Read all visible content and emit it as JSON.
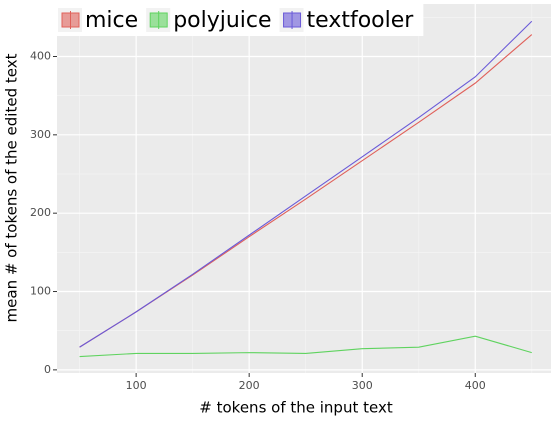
{
  "chart_data": {
    "type": "line",
    "x_label": "# tokens of the input text",
    "y_label": "mean # of tokens of the edited text",
    "x": [
      50,
      100,
      150,
      200,
      250,
      300,
      350,
      400,
      450
    ],
    "series": [
      {
        "name": "mice",
        "color": "#e0605a",
        "values": [
          29,
          74,
          121,
          170,
          218,
          267,
          316,
          366,
          428
        ]
      },
      {
        "name": "polyjuice",
        "color": "#5fd35f",
        "values": [
          17,
          21,
          21,
          22,
          21,
          27,
          29,
          43,
          22
        ]
      },
      {
        "name": "textfooler",
        "color": "#6a5ad8",
        "values": [
          29,
          74,
          122,
          172,
          222,
          272,
          322,
          374,
          445
        ]
      }
    ],
    "xlim": [
      30,
      467
    ],
    "xticks": [
      100,
      200,
      300,
      400
    ],
    "ylim": [
      -4,
      467
    ],
    "yticks": [
      0,
      100,
      200,
      300,
      400
    ],
    "grid": true,
    "legend": "top"
  }
}
